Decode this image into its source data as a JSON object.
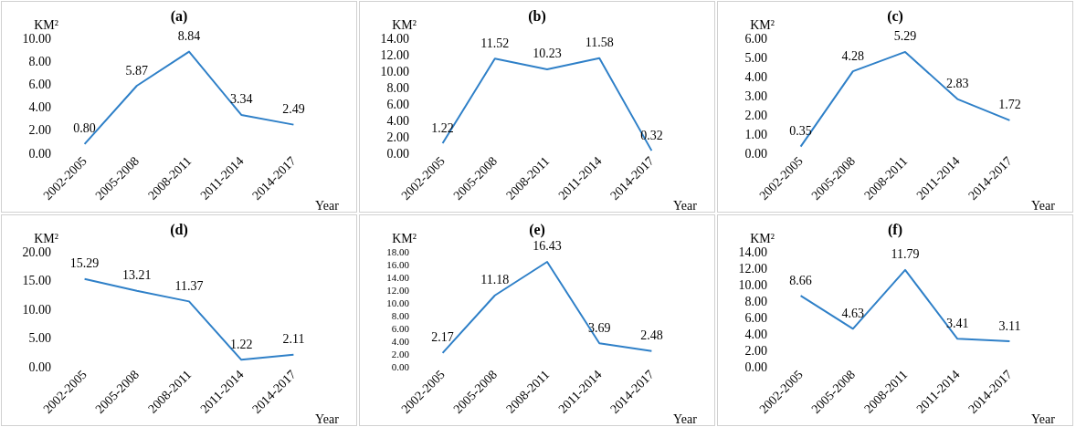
{
  "chart_data": [
    {
      "type": "line",
      "title": "(a)",
      "ylabel": "KM²",
      "xlabel": "Year",
      "categories": [
        "2002-2005",
        "2005-2008",
        "2008-2011",
        "2011-2014",
        "2014-2017"
      ],
      "values": [
        0.8,
        5.87,
        8.84,
        3.34,
        2.49
      ],
      "value_labels": [
        "0.80",
        "5.87",
        "8.84",
        "3.34",
        "2.49"
      ],
      "color": "#2f80c8",
      "marker": "none",
      "grid": false,
      "ylim": [
        0,
        10
      ],
      "yticks": [
        {
          "value": 0,
          "label": "0.00"
        },
        {
          "value": 2,
          "label": "2.00"
        },
        {
          "value": 4,
          "label": "4.00"
        },
        {
          "value": 6,
          "label": "6.00"
        },
        {
          "value": 8,
          "label": "8.00"
        },
        {
          "value": 10,
          "label": "10.00"
        }
      ]
    },
    {
      "type": "line",
      "title": "(b)",
      "ylabel": "KM²",
      "xlabel": "Year",
      "categories": [
        "2002-2005",
        "2005-2008",
        "2008-2011",
        "2011-2014",
        "2014-2017"
      ],
      "values": [
        1.22,
        11.52,
        10.23,
        11.58,
        0.32
      ],
      "value_labels": [
        "1.22",
        "11.52",
        "10.23",
        "11.58",
        "0.32"
      ],
      "color": "#2f80c8",
      "marker": "none",
      "grid": false,
      "ylim": [
        0,
        14
      ],
      "yticks": [
        {
          "value": 0,
          "label": "0.00"
        },
        {
          "value": 2,
          "label": "2.00"
        },
        {
          "value": 4,
          "label": "4.00"
        },
        {
          "value": 6,
          "label": "6.00"
        },
        {
          "value": 8,
          "label": "8.00"
        },
        {
          "value": 10,
          "label": "10.00"
        },
        {
          "value": 12,
          "label": "12.00"
        },
        {
          "value": 14,
          "label": "14.00"
        }
      ]
    },
    {
      "type": "line",
      "title": "(c)",
      "ylabel": "KM²",
      "xlabel": "Year",
      "categories": [
        "2002-2005",
        "2005-2008",
        "2008-2011",
        "2011-2014",
        "2014-2017"
      ],
      "values": [
        0.35,
        4.28,
        5.29,
        2.83,
        1.72
      ],
      "value_labels": [
        "0.35",
        "4.28",
        "5.29",
        "2.83",
        "1.72"
      ],
      "color": "#2f80c8",
      "marker": "none",
      "grid": false,
      "ylim": [
        0,
        6
      ],
      "yticks": [
        {
          "value": 0,
          "label": "0.00"
        },
        {
          "value": 1,
          "label": "1.00"
        },
        {
          "value": 2,
          "label": "2.00"
        },
        {
          "value": 3,
          "label": "3.00"
        },
        {
          "value": 4,
          "label": "4.00"
        },
        {
          "value": 5,
          "label": "5.00"
        },
        {
          "value": 6,
          "label": "6.00"
        }
      ]
    },
    {
      "type": "line",
      "title": "(d)",
      "ylabel": "KM²",
      "xlabel": "Year",
      "categories": [
        "2002-2005",
        "2005-2008",
        "2008-2011",
        "2011-2014",
        "2014-2017"
      ],
      "values": [
        15.29,
        13.21,
        11.37,
        1.22,
        2.11
      ],
      "value_labels": [
        "15.29",
        "13.21",
        "11.37",
        "1.22",
        "2.11"
      ],
      "color": "#2f80c8",
      "marker": "none",
      "grid": false,
      "ylim": [
        0,
        20
      ],
      "yticks": [
        {
          "value": 0,
          "label": "0.00"
        },
        {
          "value": 5,
          "label": "5.00"
        },
        {
          "value": 10,
          "label": "10.00"
        },
        {
          "value": 15,
          "label": "15.00"
        },
        {
          "value": 20,
          "label": "20.00"
        }
      ]
    },
    {
      "type": "line",
      "title": "(e)",
      "ylabel": "KM²",
      "xlabel": "Year",
      "categories": [
        "2002-2005",
        "2005-2008",
        "2008-2011",
        "2011-2014",
        "2014-2017"
      ],
      "values": [
        2.17,
        11.18,
        16.43,
        3.69,
        2.48
      ],
      "value_labels": [
        "2.17",
        "11.18",
        "16.43",
        "3.69",
        "2.48"
      ],
      "color": "#2f80c8",
      "marker": "none",
      "grid": false,
      "ylim": [
        0,
        18
      ],
      "yticks": [
        {
          "value": 0,
          "label": "0.00"
        },
        {
          "value": 2,
          "label": "2.00"
        },
        {
          "value": 4,
          "label": "4.00"
        },
        {
          "value": 6,
          "label": "6.00"
        },
        {
          "value": 8,
          "label": "8.00"
        },
        {
          "value": 10,
          "label": "10.00"
        },
        {
          "value": 12,
          "label": "12.00"
        },
        {
          "value": 14,
          "label": "14.00"
        },
        {
          "value": 16,
          "label": "16.00"
        },
        {
          "value": 18,
          "label": "18.00"
        }
      ]
    },
    {
      "type": "line",
      "title": "(f)",
      "ylabel": "KM²",
      "xlabel": "Year",
      "categories": [
        "2002-2005",
        "2005-2008",
        "2008-2011",
        "2011-2014",
        "2014-2017"
      ],
      "values": [
        8.66,
        4.63,
        11.79,
        3.41,
        3.11
      ],
      "value_labels": [
        "8.66",
        "4.63",
        "11.79",
        "3.41",
        "3.11"
      ],
      "color": "#2f80c8",
      "marker": "none",
      "grid": false,
      "ylim": [
        0,
        14
      ],
      "yticks": [
        {
          "value": 0,
          "label": "0.00"
        },
        {
          "value": 2,
          "label": "2.00"
        },
        {
          "value": 4,
          "label": "4.00"
        },
        {
          "value": 6,
          "label": "6.00"
        },
        {
          "value": 8,
          "label": "8.00"
        },
        {
          "value": 10,
          "label": "10.00"
        },
        {
          "value": 12,
          "label": "12.00"
        },
        {
          "value": 14,
          "label": "14.00"
        }
      ]
    }
  ]
}
